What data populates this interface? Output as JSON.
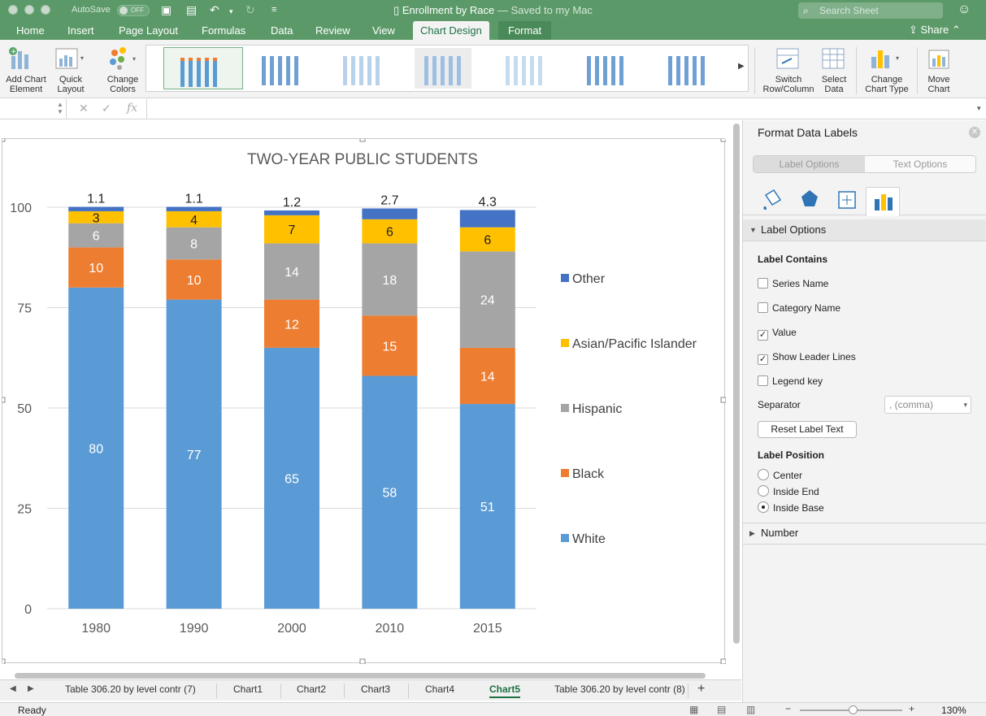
{
  "titlebar": {
    "autosave_label": "AutoSave",
    "toggle_label": "OFF",
    "doc_name": "Enrollment by Race",
    "saved_status": " — Saved to my Mac",
    "search_placeholder": "Search Sheet"
  },
  "tabs": [
    "Home",
    "Insert",
    "Page Layout",
    "Formulas",
    "Data",
    "Review",
    "View",
    "Chart Design",
    "Format"
  ],
  "active_tab": "Chart Design",
  "share_label": "Share",
  "ribbon": {
    "add_chart_element": [
      "Add Chart",
      "Element"
    ],
    "quick_layout": [
      "Quick",
      "Layout"
    ],
    "change_colors": [
      "Change",
      "Colors"
    ],
    "switch_row_col": [
      "Switch",
      "Row/Column"
    ],
    "select_data": [
      "Select",
      "Data"
    ],
    "change_chart_type": [
      "Change",
      "Chart Type"
    ],
    "move_chart": [
      "Move",
      "Chart"
    ]
  },
  "formula_bar": {
    "fx_symbol": "fx"
  },
  "sheet_tabs": [
    "Table 306.20 by level contr (7)",
    "Chart1",
    "Chart2",
    "Chart3",
    "Chart4",
    "Chart5",
    "Table 306.20 by level contr (8)"
  ],
  "active_sheet": "Chart5",
  "status": {
    "ready": "Ready",
    "zoom": "130%"
  },
  "pane": {
    "title": "Format Data Labels",
    "tab_label_options": "Label Options",
    "tab_text_options": "Text Options",
    "section_label_options": "Label Options",
    "label_contains": "Label Contains",
    "checkboxes": [
      {
        "label": "Series Name",
        "checked": false
      },
      {
        "label": "Category Name",
        "checked": false
      },
      {
        "label": "Value",
        "checked": true
      },
      {
        "label": "Show Leader Lines",
        "checked": true
      },
      {
        "label": "Legend key",
        "checked": false
      }
    ],
    "separator_label": "Separator",
    "separator_value": ", (comma)",
    "reset_button": "Reset Label Text",
    "label_position": "Label Position",
    "positions": [
      {
        "label": "Center",
        "selected": false
      },
      {
        "label": "Inside End",
        "selected": false
      },
      {
        "label": "Inside Base",
        "selected": true
      }
    ],
    "number_section": "Number"
  },
  "colors": {
    "White": "#5b9bd5",
    "Black": "#ed7d31",
    "Hispanic": "#a5a5a5",
    "Asian": "#ffc000",
    "Other": "#4472c4"
  },
  "chart_data": {
    "type": "bar",
    "stacked": true,
    "title": "TWO-YEAR PUBLIC STUDENTS",
    "categories": [
      "1980",
      "1990",
      "2000",
      "2010",
      "2015"
    ],
    "ylim": [
      0,
      100
    ],
    "yticks": [
      0,
      25,
      50,
      75,
      100
    ],
    "grid": true,
    "legend_position": "right",
    "series": [
      {
        "name": "White",
        "values": [
          80,
          77,
          65,
          58,
          51
        ]
      },
      {
        "name": "Black",
        "values": [
          10,
          10,
          12,
          15,
          14
        ]
      },
      {
        "name": "Hispanic",
        "values": [
          6,
          8,
          14,
          18,
          24
        ]
      },
      {
        "name": "Asian/Pacific Islander",
        "values": [
          3,
          4,
          7,
          6,
          6
        ]
      },
      {
        "name": "Other",
        "values": [
          1.1,
          1.1,
          1.2,
          2.7,
          4.3
        ]
      }
    ]
  }
}
